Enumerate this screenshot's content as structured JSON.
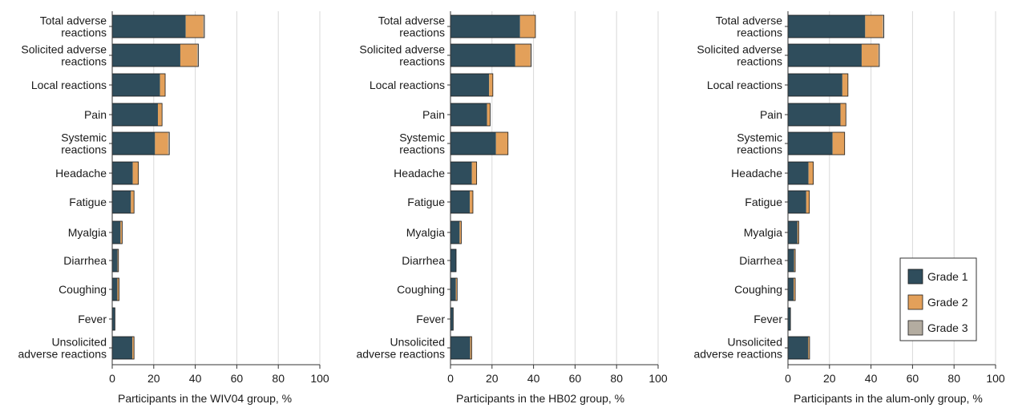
{
  "colors": {
    "grade1": "#2f4d5c",
    "grade2": "#e3a05a",
    "grade3": "#b3aca0",
    "grid": "#d8d8d8",
    "axis": "#333333"
  },
  "legend": {
    "items": [
      {
        "label": "Grade 1",
        "color": "#2f4d5c"
      },
      {
        "label": "Grade 2",
        "color": "#e3a05a"
      },
      {
        "label": "Grade 3",
        "color": "#b3aca0"
      }
    ]
  },
  "chart_data": [
    {
      "type": "bar",
      "orientation": "horizontal",
      "stacked": true,
      "xlabel": "Participants in the WIV04 group, %",
      "xlim": [
        0,
        100
      ],
      "xticks": [
        "0",
        "20",
        "40",
        "60",
        "80",
        "100"
      ],
      "grid": true,
      "categories": [
        [
          "Total adverse",
          "reactions"
        ],
        [
          "Solicited adverse",
          "reactions"
        ],
        [
          "Local reactions"
        ],
        [
          "Pain"
        ],
        [
          "Systemic",
          "reactions"
        ],
        [
          "Headache"
        ],
        [
          "Fatigue"
        ],
        [
          "Myalgia"
        ],
        [
          "Diarrhea"
        ],
        [
          "Coughing"
        ],
        [
          "Fever"
        ],
        [
          "Unsolicited",
          "adverse reactions"
        ]
      ],
      "series": [
        {
          "name": "Grade 1",
          "values": [
            35.4,
            32.8,
            23.0,
            22.0,
            20.6,
            9.9,
            9.0,
            4.0,
            2.6,
            2.5,
            1.3,
            9.7
          ]
        },
        {
          "name": "Grade 2",
          "values": [
            8.4,
            8.1,
            2.5,
            2.0,
            6.3,
            2.7,
            1.5,
            0.8,
            0.4,
            0.8,
            0.0,
            0.8
          ]
        },
        {
          "name": "Grade 3",
          "values": [
            0.6,
            0.6,
            0.0,
            0.0,
            0.6,
            0.0,
            0.0,
            0.0,
            0.0,
            0.0,
            0.0,
            0.0
          ]
        }
      ]
    },
    {
      "type": "bar",
      "orientation": "horizontal",
      "stacked": true,
      "xlabel": "Participants in the HB02 group, %",
      "xlim": [
        0,
        100
      ],
      "xticks": [
        "0",
        "20",
        "40",
        "60",
        "80",
        "100"
      ],
      "grid": true,
      "categories": [
        [
          "Total adverse",
          "reactions"
        ],
        [
          "Solicited adverse",
          "reactions"
        ],
        [
          "Local reactions"
        ],
        [
          "Pain"
        ],
        [
          "Systemic",
          "reactions"
        ],
        [
          "Headache"
        ],
        [
          "Fatigue"
        ],
        [
          "Myalgia"
        ],
        [
          "Diarrhea"
        ],
        [
          "Coughing"
        ],
        [
          "Fever"
        ],
        [
          "Unsolicited",
          "adverse reactions"
        ]
      ],
      "series": [
        {
          "name": "Grade 1",
          "values": [
            33.5,
            31.2,
            18.6,
            17.6,
            21.9,
            10.3,
            9.3,
            4.4,
            2.7,
            2.6,
            1.3,
            9.5
          ]
        },
        {
          "name": "Grade 2",
          "values": [
            7.4,
            7.2,
            1.8,
            1.5,
            5.8,
            2.3,
            1.5,
            0.8,
            0.0,
            0.6,
            0.0,
            0.7
          ]
        },
        {
          "name": "Grade 3",
          "values": [
            0.0,
            0.5,
            0.0,
            0.0,
            0.0,
            0.0,
            0.0,
            0.0,
            0.0,
            0.0,
            0.0,
            0.0
          ]
        }
      ]
    },
    {
      "type": "bar",
      "orientation": "horizontal",
      "stacked": true,
      "xlabel": "Participants in the alum-only group, %",
      "xlim": [
        0,
        100
      ],
      "xticks": [
        "0",
        "20",
        "40",
        "60",
        "80",
        "100"
      ],
      "grid": true,
      "categories": [
        [
          "Total adverse",
          "reactions"
        ],
        [
          "Solicited adverse",
          "reactions"
        ],
        [
          "Local reactions"
        ],
        [
          "Pain"
        ],
        [
          "Systemic",
          "reactions"
        ],
        [
          "Headache"
        ],
        [
          "Fatigue"
        ],
        [
          "Myalgia"
        ],
        [
          "Diarrhea"
        ],
        [
          "Coughing"
        ],
        [
          "Fever"
        ],
        [
          "Unsolicited",
          "adverse reactions"
        ]
      ],
      "series": [
        {
          "name": "Grade 1",
          "values": [
            37.2,
            35.5,
            26.2,
            25.3,
            21.5,
            9.9,
            8.8,
            4.6,
            3.0,
            2.8,
            1.2,
            9.8
          ]
        },
        {
          "name": "Grade 2",
          "values": [
            8.4,
            8.0,
            2.7,
            2.6,
            5.8,
            2.3,
            1.5,
            0.6,
            0.5,
            0.7,
            0.0,
            0.6
          ]
        },
        {
          "name": "Grade 3",
          "values": [
            0.6,
            0.5,
            0.0,
            0.0,
            0.0,
            0.0,
            0.0,
            0.0,
            0.0,
            0.0,
            0.0,
            0.0
          ]
        }
      ]
    }
  ]
}
